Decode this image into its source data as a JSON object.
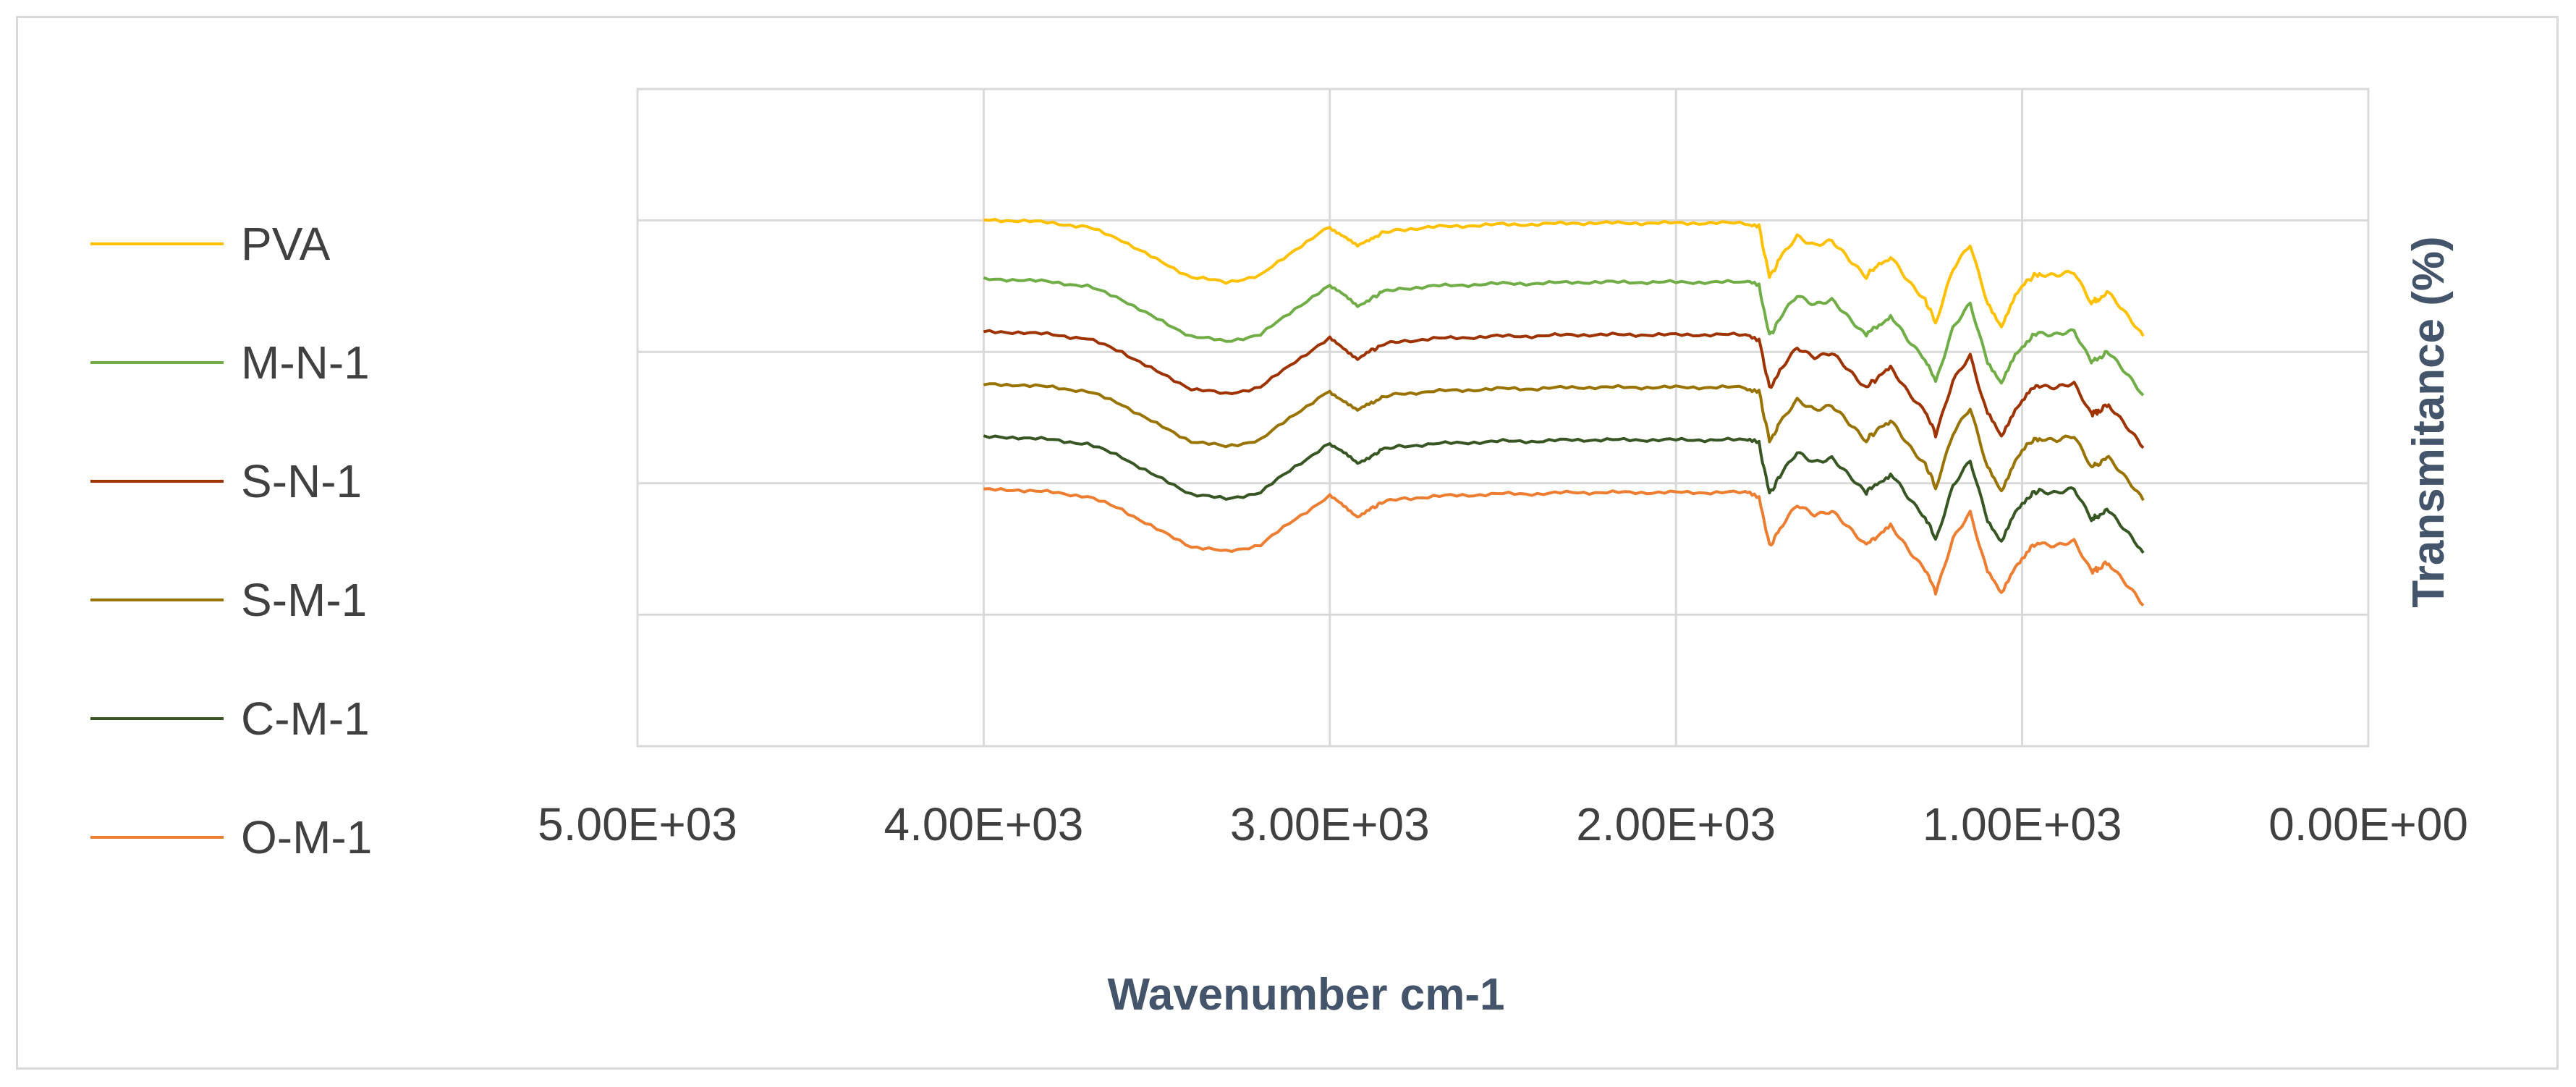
{
  "chart_data": {
    "type": "line",
    "title": "",
    "xlabel": "Wavenumber cm-1",
    "ylabel": "Transmitance (%)",
    "x_reversed": true,
    "xlim": [
      5000,
      0
    ],
    "x_ticks": [
      5000,
      4000,
      3000,
      2000,
      1000,
      0
    ],
    "x_tick_labels": [
      "5.00E+03",
      "4.00E+03",
      "3.00E+03",
      "2.00E+03",
      "1.00E+03",
      "0.00E+00"
    ],
    "ylim": [
      0,
      5
    ],
    "y_gridlines": [
      1,
      2,
      3,
      4
    ],
    "y_tick_labels_shown": false,
    "grid": true,
    "legend_position": "left",
    "series": [
      {
        "name": "PVA",
        "color": "#ffc000",
        "offset": 4.0
      },
      {
        "name": "M-N-1",
        "color": "#70ad47",
        "offset": 3.55
      },
      {
        "name": "S-N-1",
        "color": "#9e3300",
        "offset": 3.15
      },
      {
        "name": "S-M-1",
        "color": "#997300",
        "offset": 2.75
      },
      {
        "name": "C-M-1",
        "color": "#375623",
        "offset": 2.35
      },
      {
        "name": "O-M-1",
        "color": "#ed7d31",
        "offset": 1.95
      }
    ],
    "x": [
      4000,
      3900,
      3800,
      3700,
      3600,
      3500,
      3400,
      3300,
      3200,
      3100,
      3000,
      2960,
      2920,
      2880,
      2850,
      2800,
      2700,
      2600,
      2500,
      2400,
      2300,
      2200,
      2100,
      2000,
      1900,
      1800,
      1760,
      1730,
      1700,
      1650,
      1600,
      1550,
      1500,
      1450,
      1420,
      1380,
      1330,
      1280,
      1250,
      1200,
      1150,
      1100,
      1060,
      1020,
      980,
      950,
      900,
      850,
      800,
      780,
      750,
      700,
      650
    ],
    "shape": [
      0,
      0,
      -0.02,
      -0.05,
      -0.15,
      -0.3,
      -0.43,
      -0.47,
      -0.42,
      -0.22,
      -0.05,
      -0.12,
      -0.2,
      -0.14,
      -0.1,
      -0.07,
      -0.05,
      -0.04,
      -0.03,
      -0.03,
      -0.02,
      -0.02,
      -0.02,
      -0.02,
      -0.02,
      -0.02,
      -0.05,
      -0.43,
      -0.3,
      -0.12,
      -0.18,
      -0.16,
      -0.3,
      -0.42,
      -0.35,
      -0.28,
      -0.45,
      -0.6,
      -0.78,
      -0.38,
      -0.18,
      -0.62,
      -0.8,
      -0.58,
      -0.45,
      -0.4,
      -0.42,
      -0.4,
      -0.62,
      -0.6,
      -0.55,
      -0.72,
      -0.88
    ]
  }
}
